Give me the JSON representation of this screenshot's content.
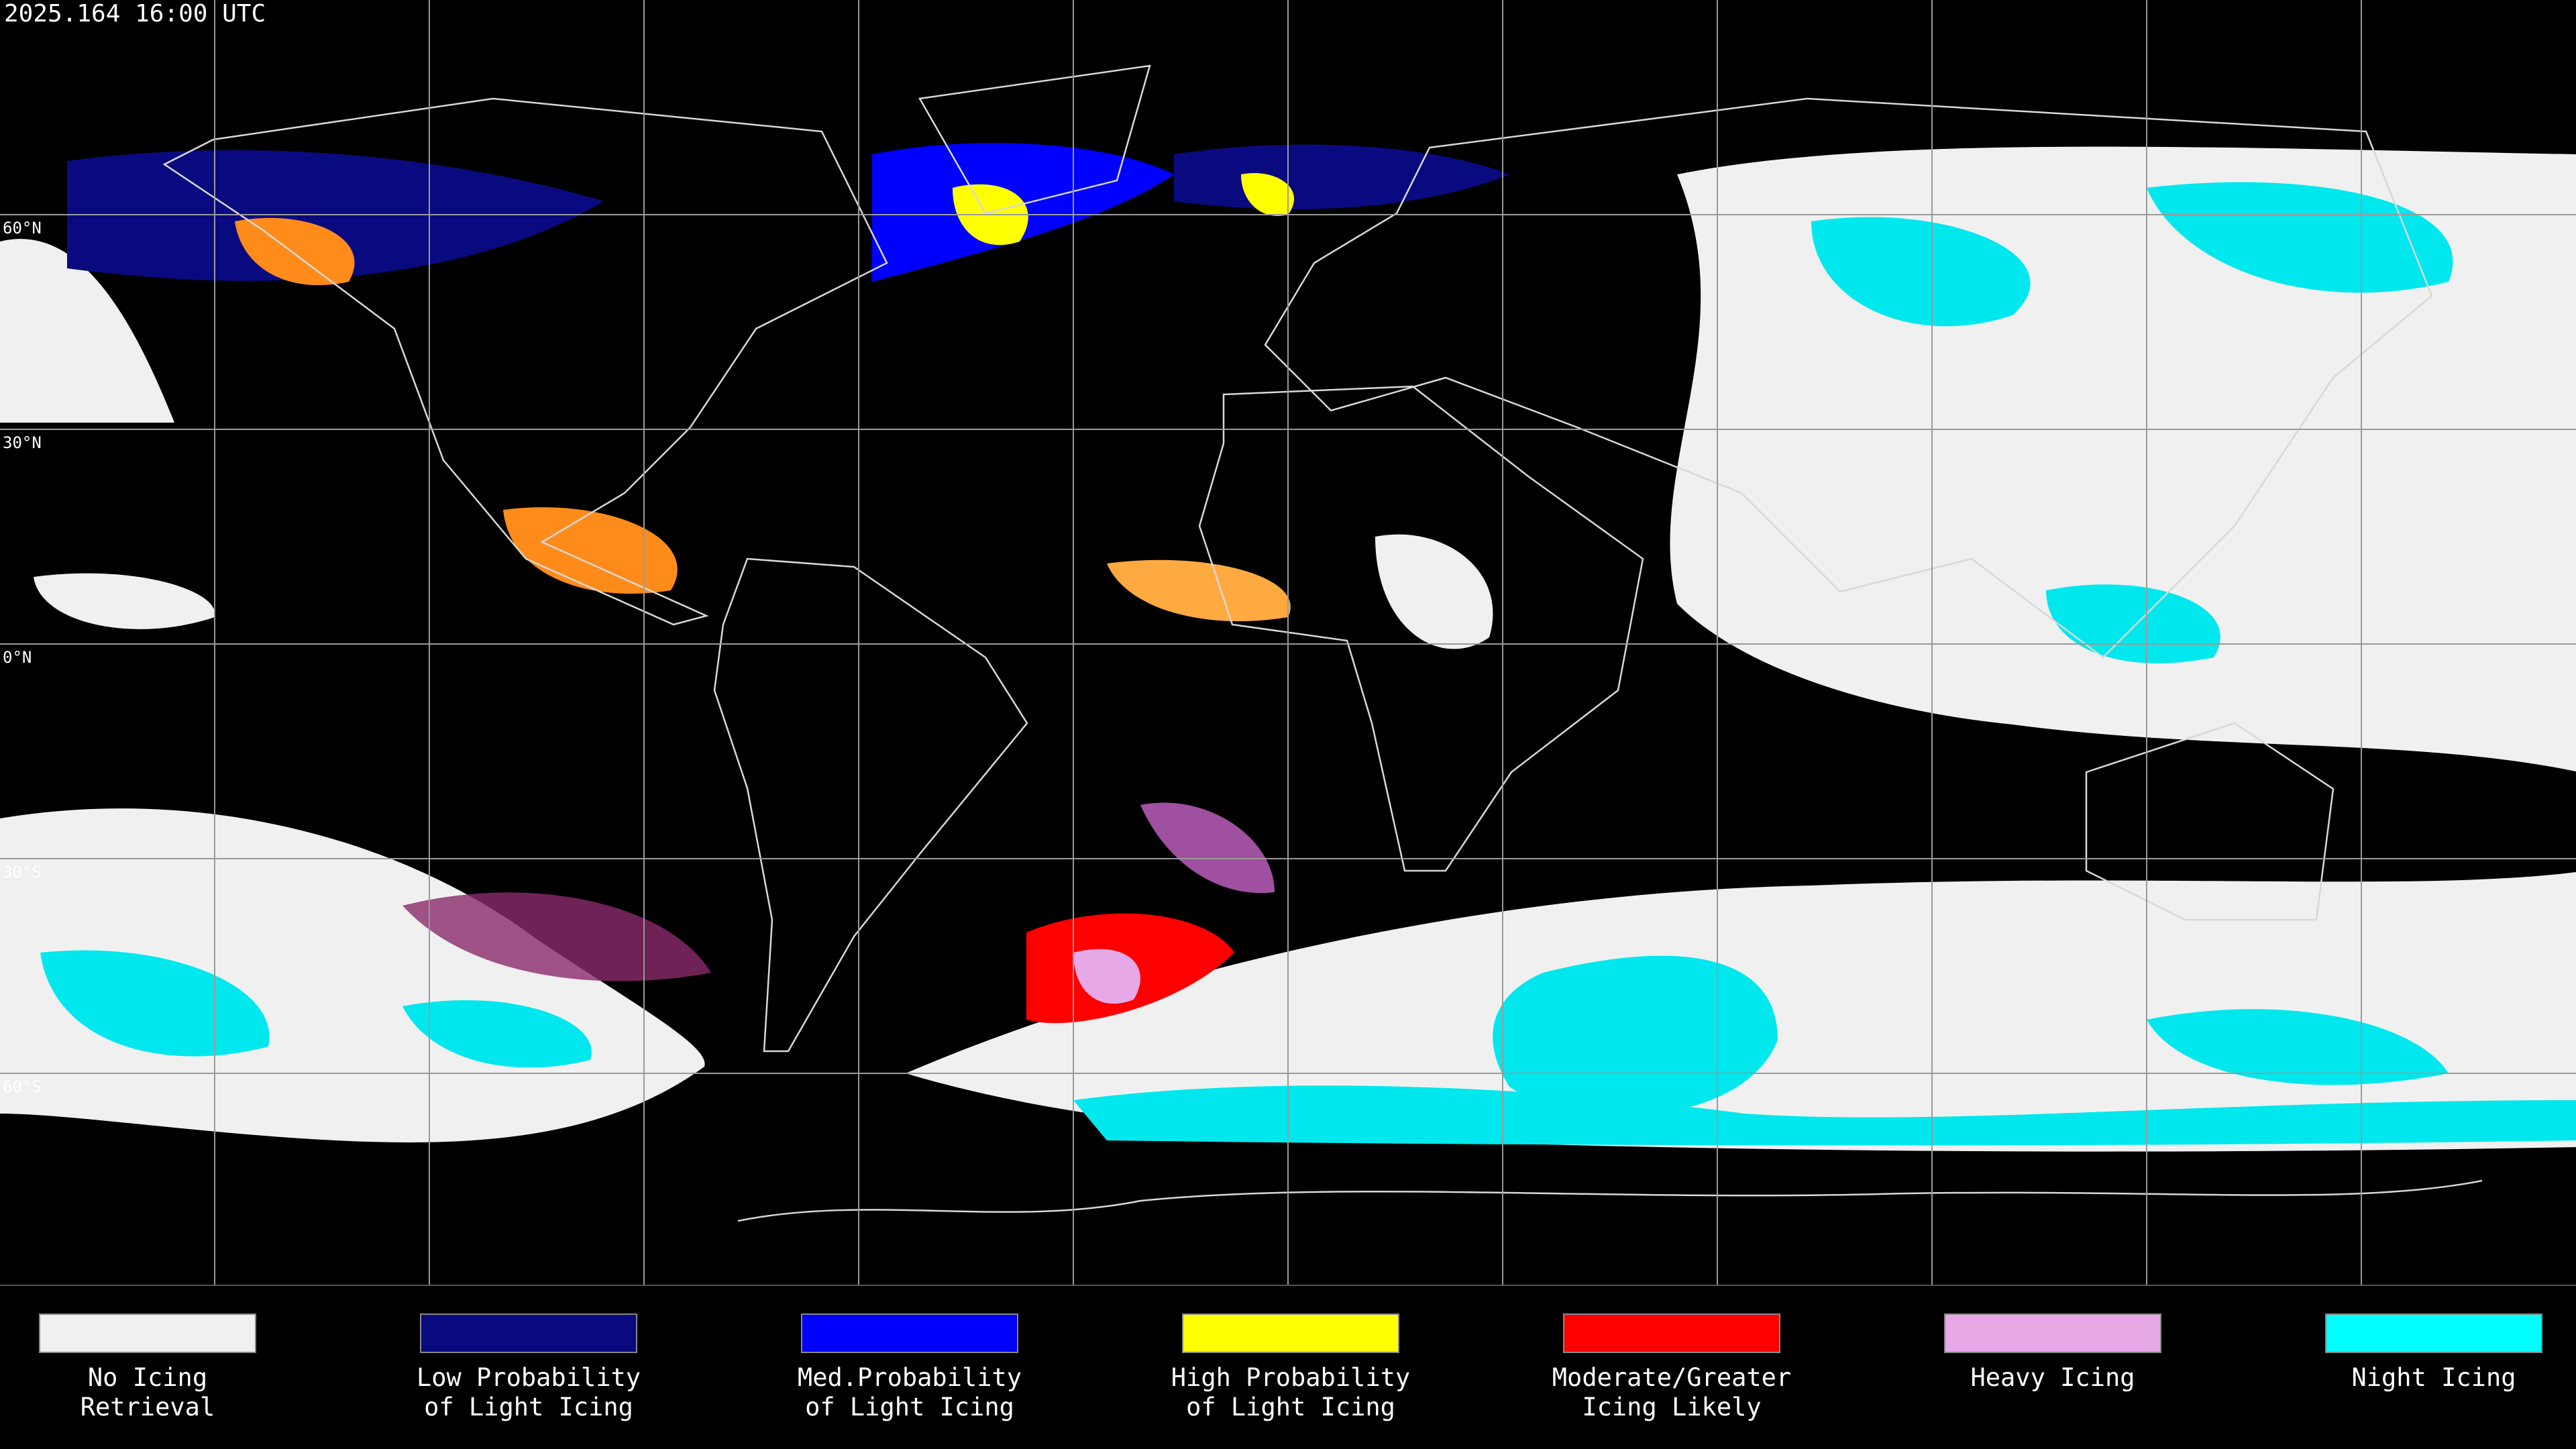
{
  "header": {
    "timestamp": "2025.164 16:00 UTC"
  },
  "map": {
    "latitude_labels": [
      "60°N",
      "30°N",
      "0°N",
      "30°S",
      "60°S"
    ]
  },
  "legend": {
    "items": [
      {
        "label": [
          "No Icing",
          "Retrieval"
        ],
        "color": "#f0f0f0"
      },
      {
        "label": [
          "Low Probability",
          "of Light Icing"
        ],
        "color": "#0a0a80"
      },
      {
        "label": [
          "Med.Probability",
          "of Light Icing"
        ],
        "color": "#0000ff"
      },
      {
        "label": [
          "High Probability",
          "of Light Icing"
        ],
        "color": "#ffff00"
      },
      {
        "label": [
          "Moderate/Greater",
          "Icing Likely"
        ],
        "color": "#ff0000"
      },
      {
        "label": [
          "Heavy Icing"
        ],
        "color": "#e6a8e6"
      },
      {
        "label": [
          "Night Icing"
        ],
        "color": "#00ffff"
      }
    ]
  }
}
